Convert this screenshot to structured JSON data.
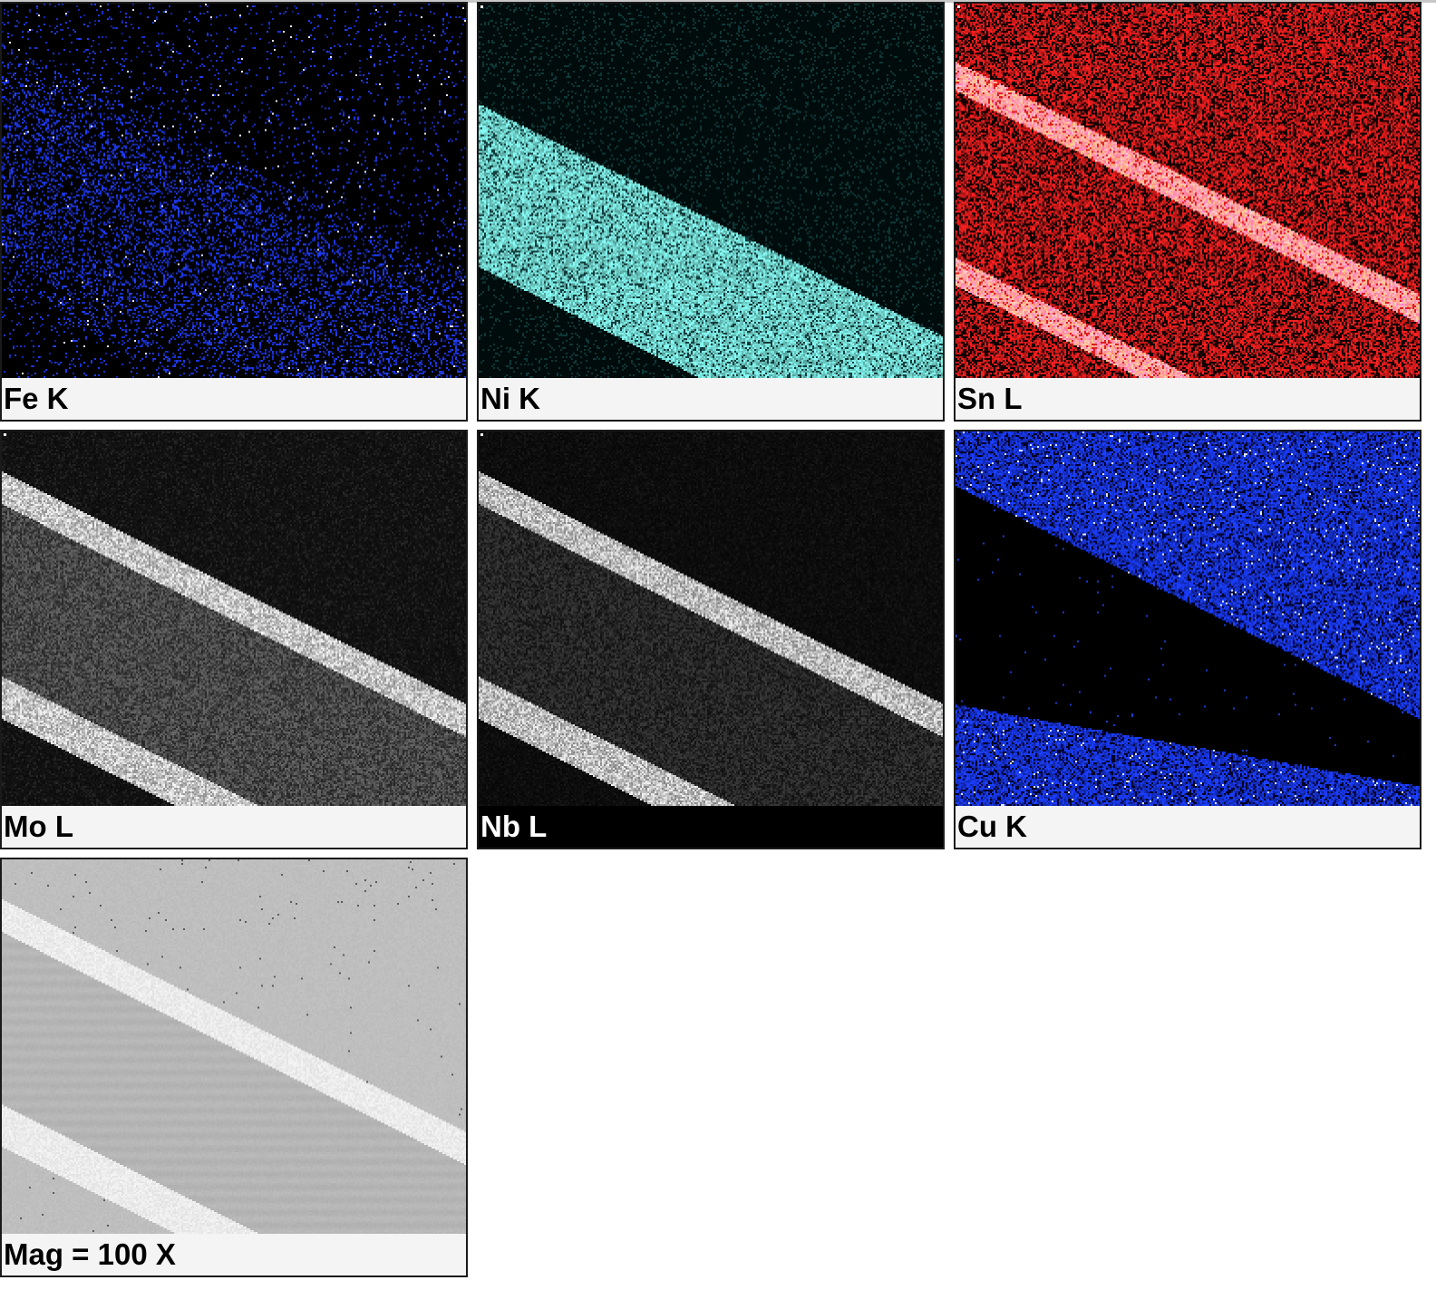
{
  "panels": [
    {
      "label": "Fe K",
      "color": "#1f3cff",
      "caption_style": "light"
    },
    {
      "label": "Ni K",
      "color": "#7ff0e8",
      "caption_style": "light"
    },
    {
      "label": "Sn L",
      "color": "#ff2020",
      "caption_style": "light"
    },
    {
      "label": "Mo L",
      "color": "#d8d8d8",
      "caption_style": "light"
    },
    {
      "label": "Nb L",
      "color": "#e0e0e0",
      "caption_style": "dark"
    },
    {
      "label": "Cu K",
      "color": "#1a3cff",
      "caption_style": "light"
    },
    {
      "label": "Mag = 100 X",
      "color": "#b0b0b0",
      "caption_style": "light"
    }
  ]
}
